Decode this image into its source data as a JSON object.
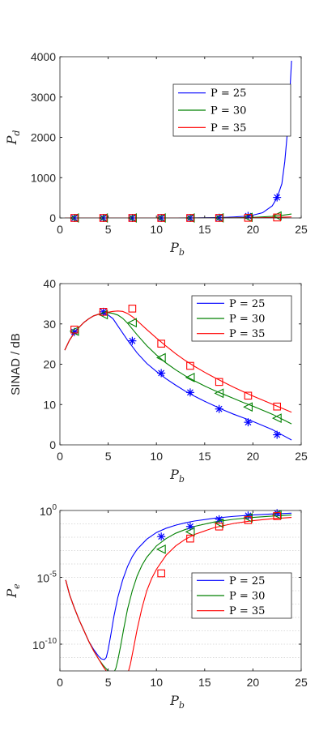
{
  "chart_data": [
    {
      "type": "line",
      "xlabel": "P",
      "xlabel_sub": "b",
      "ylabel": "P",
      "ylabel_sub": "d",
      "xlim": [
        0,
        25
      ],
      "ylim": [
        0,
        4000
      ],
      "xticks": [
        0,
        5,
        10,
        15,
        20,
        25
      ],
      "yticks": [
        0,
        1000,
        2000,
        3000,
        4000
      ],
      "ytick_labels": [
        "0",
        "1000",
        "2000",
        "3000",
        "4000"
      ],
      "yscale": "linear",
      "grid": false,
      "legend_position": "upper-right",
      "legend_title": "",
      "series": [
        {
          "name": "P = 25",
          "color": "#0000ff",
          "marker": "asterisk",
          "x": [
            0.5,
            2,
            4,
            6,
            8,
            10,
            12,
            14,
            16,
            17,
            18,
            19,
            20,
            21,
            22,
            22.5,
            23,
            23.3,
            23.6,
            23.8,
            24
          ],
          "y": [
            0,
            0,
            0,
            0,
            0,
            0,
            0,
            2,
            8,
            15,
            25,
            40,
            70,
            130,
            300,
            500,
            850,
            1400,
            2200,
            3000,
            3900
          ],
          "marker_x": [
            1.5,
            4.5,
            7.5,
            10.5,
            13.5,
            16.5,
            19.5,
            22.5
          ],
          "marker_y": [
            0,
            0,
            0,
            0,
            0,
            5,
            50,
            510
          ]
        },
        {
          "name": "P = 30",
          "color": "#008000",
          "marker": "triangle-left",
          "x": [
            0.5,
            4,
            8,
            12,
            16,
            18,
            20,
            22,
            23,
            24
          ],
          "y": [
            0,
            0,
            0,
            0,
            2,
            5,
            15,
            40,
            65,
            100
          ],
          "marker_x": [
            1.5,
            4.5,
            7.5,
            10.5,
            13.5,
            16.5,
            19.5,
            22.5
          ],
          "marker_y": [
            0,
            0,
            0,
            0,
            0,
            2,
            15,
            50
          ]
        },
        {
          "name": "P = 35",
          "color": "#ff0000",
          "marker": "square",
          "x": [
            0.5,
            4,
            8,
            12,
            16,
            18,
            20,
            22,
            23,
            24
          ],
          "y": [
            0,
            0,
            0,
            0,
            0,
            1,
            4,
            12,
            18,
            25
          ],
          "marker_x": [
            1.5,
            4.5,
            7.5,
            10.5,
            13.5,
            16.5,
            19.5,
            22.5
          ],
          "marker_y": [
            0,
            0,
            0,
            0,
            0,
            1,
            4,
            12
          ]
        }
      ]
    },
    {
      "type": "line",
      "xlabel": "P",
      "xlabel_sub": "b",
      "ylabel": "SINAD / dB",
      "ylabel_sub": "",
      "xlim": [
        0,
        25
      ],
      "ylim": [
        0,
        40
      ],
      "xticks": [
        0,
        5,
        10,
        15,
        20,
        25
      ],
      "yticks": [
        0,
        10,
        20,
        30,
        40
      ],
      "ytick_labels": [
        "0",
        "10",
        "20",
        "30",
        "40"
      ],
      "yscale": "linear",
      "grid": false,
      "legend_position": "upper-right",
      "legend_title": "",
      "series": [
        {
          "name": "P = 25",
          "color": "#0000ff",
          "marker": "asterisk",
          "x": [
            0.5,
            1,
            1.5,
            2,
            2.5,
            3,
            3.5,
            4,
            4.5,
            5,
            5.5,
            6,
            7,
            8,
            9,
            10,
            11,
            12,
            13,
            14,
            15,
            16,
            17,
            18,
            19,
            20,
            21,
            22,
            23,
            24
          ],
          "y": [
            23.5,
            26,
            27.8,
            29.2,
            30.4,
            31.3,
            32,
            32.4,
            32.5,
            32.2,
            31.3,
            29.5,
            26,
            22.8,
            20.2,
            18.2,
            16.4,
            14.8,
            13.3,
            12,
            10.8,
            9.7,
            8.6,
            7.6,
            6.7,
            5.8,
            4.8,
            3.8,
            2.5,
            1.2
          ],
          "marker_x": [
            1.5,
            4.5,
            7.5,
            10.5,
            13.5,
            16.5,
            19.5,
            22.5
          ],
          "marker_y": [
            28,
            33,
            25.8,
            17.8,
            13,
            8.9,
            5.6,
            2.5
          ]
        },
        {
          "name": "P = 30",
          "color": "#008000",
          "marker": "triangle-left",
          "x": [
            0.5,
            1,
            1.5,
            2,
            2.5,
            3,
            3.5,
            4,
            4.5,
            5,
            5.5,
            6,
            6.5,
            7,
            8,
            9,
            10,
            11,
            12,
            13,
            14,
            15,
            16,
            17,
            18,
            19,
            20,
            21,
            22,
            23,
            24
          ],
          "y": [
            23.5,
            26,
            27.8,
            29.2,
            30.4,
            31.3,
            32,
            32.4,
            32.7,
            32.8,
            32.6,
            32.2,
            31.4,
            30.2,
            27.3,
            24.6,
            22.3,
            20.3,
            18.6,
            17.1,
            15.8,
            14.6,
            13.5,
            12.5,
            11.5,
            10.5,
            9.6,
            8.6,
            7.6,
            6.4,
            5.2
          ],
          "marker_x": [
            1.5,
            4.5,
            7.5,
            10.5,
            13.5,
            16.5,
            19.5,
            22.5
          ],
          "marker_y": [
            28.2,
            32.3,
            30.3,
            21.6,
            16.7,
            12.8,
            9.4,
            6.6
          ]
        },
        {
          "name": "P = 35",
          "color": "#ff0000",
          "marker": "square",
          "x": [
            0.5,
            1,
            1.5,
            2,
            2.5,
            3,
            3.5,
            4,
            4.5,
            5,
            5.5,
            6,
            6.5,
            7,
            7.5,
            8,
            9,
            10,
            11,
            12,
            13,
            14,
            15,
            16,
            17,
            18,
            19,
            20,
            21,
            22,
            23,
            24
          ],
          "y": [
            23.5,
            26,
            27.8,
            29.2,
            30.4,
            31.3,
            32,
            32.4,
            32.7,
            32.9,
            33.1,
            33.2,
            33.1,
            32.6,
            31.8,
            30.8,
            28.6,
            26.5,
            24.5,
            22.6,
            20.9,
            19.4,
            18,
            16.7,
            15.5,
            14.3,
            13.2,
            12.1,
            11.1,
            10.1,
            9.1,
            8.1
          ],
          "marker_x": [
            1.5,
            4.5,
            7.5,
            10.5,
            13.5,
            16.5,
            19.5,
            22.5
          ],
          "marker_y": [
            28.6,
            33,
            33.8,
            25.1,
            19.6,
            15.6,
            12.2,
            9.5
          ]
        }
      ]
    },
    {
      "type": "line",
      "xlabel": "P",
      "xlabel_sub": "b",
      "ylabel": "P",
      "ylabel_sub": "e",
      "xlim": [
        0,
        25
      ],
      "ylim": [
        -12,
        0
      ],
      "ylim_note": "log10 scale, axis shows 10^-12 .. 10^0",
      "xticks": [
        0,
        5,
        10,
        15,
        20,
        25
      ],
      "yticks": [
        -10,
        -5,
        0
      ],
      "ytick_labels": [
        "10",
        "10",
        "10"
      ],
      "ytick_exponents": [
        "-10",
        "-5",
        "0"
      ],
      "yscale": "log",
      "grid": true,
      "legend_position": "center-right",
      "legend_title": "",
      "series": [
        {
          "name": "P = 25",
          "color": "#0000ff",
          "marker": "asterisk",
          "x": [
            0.6,
            1,
            1.5,
            2,
            2.5,
            3,
            3.5,
            4,
            4.3,
            4.6,
            4.8,
            5,
            5.3,
            5.6,
            6,
            6.5,
            7,
            7.5,
            8,
            9,
            10,
            11,
            12,
            13,
            14,
            16,
            18,
            20,
            22,
            24
          ],
          "y": [
            -5.2,
            -6.3,
            -7.3,
            -8.2,
            -9.0,
            -9.8,
            -10.4,
            -10.9,
            -11.1,
            -11.15,
            -11.0,
            -10.4,
            -9.2,
            -7.9,
            -6.5,
            -5.2,
            -4.2,
            -3.45,
            -2.9,
            -2.15,
            -1.65,
            -1.33,
            -1.1,
            -0.92,
            -0.78,
            -0.58,
            -0.44,
            -0.34,
            -0.26,
            -0.2
          ],
          "marker_x": [
            10.5,
            13.5,
            16.5,
            19.5,
            22.5
          ],
          "marker_y": [
            -1.95,
            -1.2,
            -0.66,
            -0.38,
            -0.2
          ]
        },
        {
          "name": "P = 30",
          "color": "#008000",
          "marker": "triangle-left",
          "x": [
            0.6,
            1,
            1.5,
            2,
            2.5,
            3,
            3.5,
            4,
            4.5,
            5,
            5.3,
            5.6,
            5.8,
            6,
            6.3,
            6.6,
            7,
            7.5,
            8,
            8.5,
            9,
            10,
            11,
            12,
            13,
            14,
            16,
            18,
            20,
            22,
            24
          ],
          "y": [
            -5.2,
            -6.3,
            -7.3,
            -8.2,
            -9.0,
            -9.8,
            -10.5,
            -11.1,
            -11.6,
            -12.0,
            -12.15,
            -12.1,
            -11.8,
            -11.2,
            -10.1,
            -8.9,
            -7.4,
            -6.0,
            -4.9,
            -4.1,
            -3.5,
            -2.65,
            -2.1,
            -1.7,
            -1.42,
            -1.18,
            -0.86,
            -0.66,
            -0.52,
            -0.42,
            -0.34
          ],
          "marker_x": [
            10.5,
            13.5,
            16.5,
            19.5,
            22.5
          ],
          "marker_y": [
            -2.9,
            -1.6,
            -0.95,
            -0.55,
            -0.32
          ]
        },
        {
          "name": "P = 35",
          "color": "#ff0000",
          "marker": "square",
          "x": [
            0.6,
            1,
            1.5,
            2,
            2.5,
            3,
            3.5,
            4,
            4.5,
            5,
            5.5,
            6,
            6.5,
            6.8,
            7,
            7.3,
            7.6,
            8,
            8.5,
            9,
            9.5,
            10,
            11,
            12,
            13,
            14,
            16,
            18,
            20,
            22,
            24
          ],
          "y": [
            -5.2,
            -6.3,
            -7.3,
            -8.2,
            -9.0,
            -9.8,
            -10.5,
            -11.1,
            -11.7,
            -12.2,
            -12.6,
            -12.85,
            -12.9,
            -12.7,
            -12.3,
            -11.5,
            -10.4,
            -8.9,
            -7.3,
            -6.0,
            -5.1,
            -4.4,
            -3.35,
            -2.65,
            -2.15,
            -1.78,
            -1.28,
            -0.97,
            -0.76,
            -0.62,
            -0.52
          ],
          "marker_x": [
            10.5,
            13.5,
            16.5,
            19.5,
            22.5
          ],
          "marker_y": [
            -4.7,
            -2.1,
            -1.2,
            -0.72,
            -0.42
          ]
        }
      ]
    }
  ]
}
